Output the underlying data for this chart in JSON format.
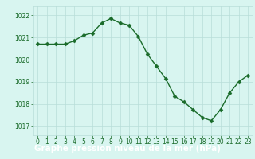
{
  "x": [
    0,
    1,
    2,
    3,
    4,
    5,
    6,
    7,
    8,
    9,
    10,
    11,
    12,
    13,
    14,
    15,
    16,
    17,
    18,
    19,
    20,
    21,
    22,
    23
  ],
  "y": [
    1020.7,
    1020.7,
    1020.7,
    1020.7,
    1020.85,
    1021.1,
    1021.2,
    1021.65,
    1021.85,
    1021.65,
    1021.55,
    1021.05,
    1020.25,
    1019.7,
    1019.15,
    1018.35,
    1018.1,
    1017.75,
    1017.4,
    1017.25,
    1017.75,
    1018.5,
    1019.0,
    1019.3
  ],
  "line_color": "#1a6b2a",
  "marker": "D",
  "marker_size": 2.5,
  "linewidth": 1.0,
  "bg_color": "#d8f5f0",
  "grid_color": "#b8ddd8",
  "label_bg_color": "#1a6b2a",
  "label_text_color": "#ffffff",
  "xlabel": "Graphe pression niveau de la mer (hPa)",
  "xlabel_fontsize": 7.5,
  "yticks": [
    1017,
    1018,
    1019,
    1020,
    1021,
    1022
  ],
  "xticks": [
    0,
    1,
    2,
    3,
    4,
    5,
    6,
    7,
    8,
    9,
    10,
    11,
    12,
    13,
    14,
    15,
    16,
    17,
    18,
    19,
    20,
    21,
    22,
    23
  ],
  "ylim": [
    1016.6,
    1022.4
  ],
  "xlim": [
    -0.5,
    23.5
  ],
  "tick_fontsize": 5.5,
  "tick_color": "#1a6b2a",
  "label_bar_height": 0.13
}
